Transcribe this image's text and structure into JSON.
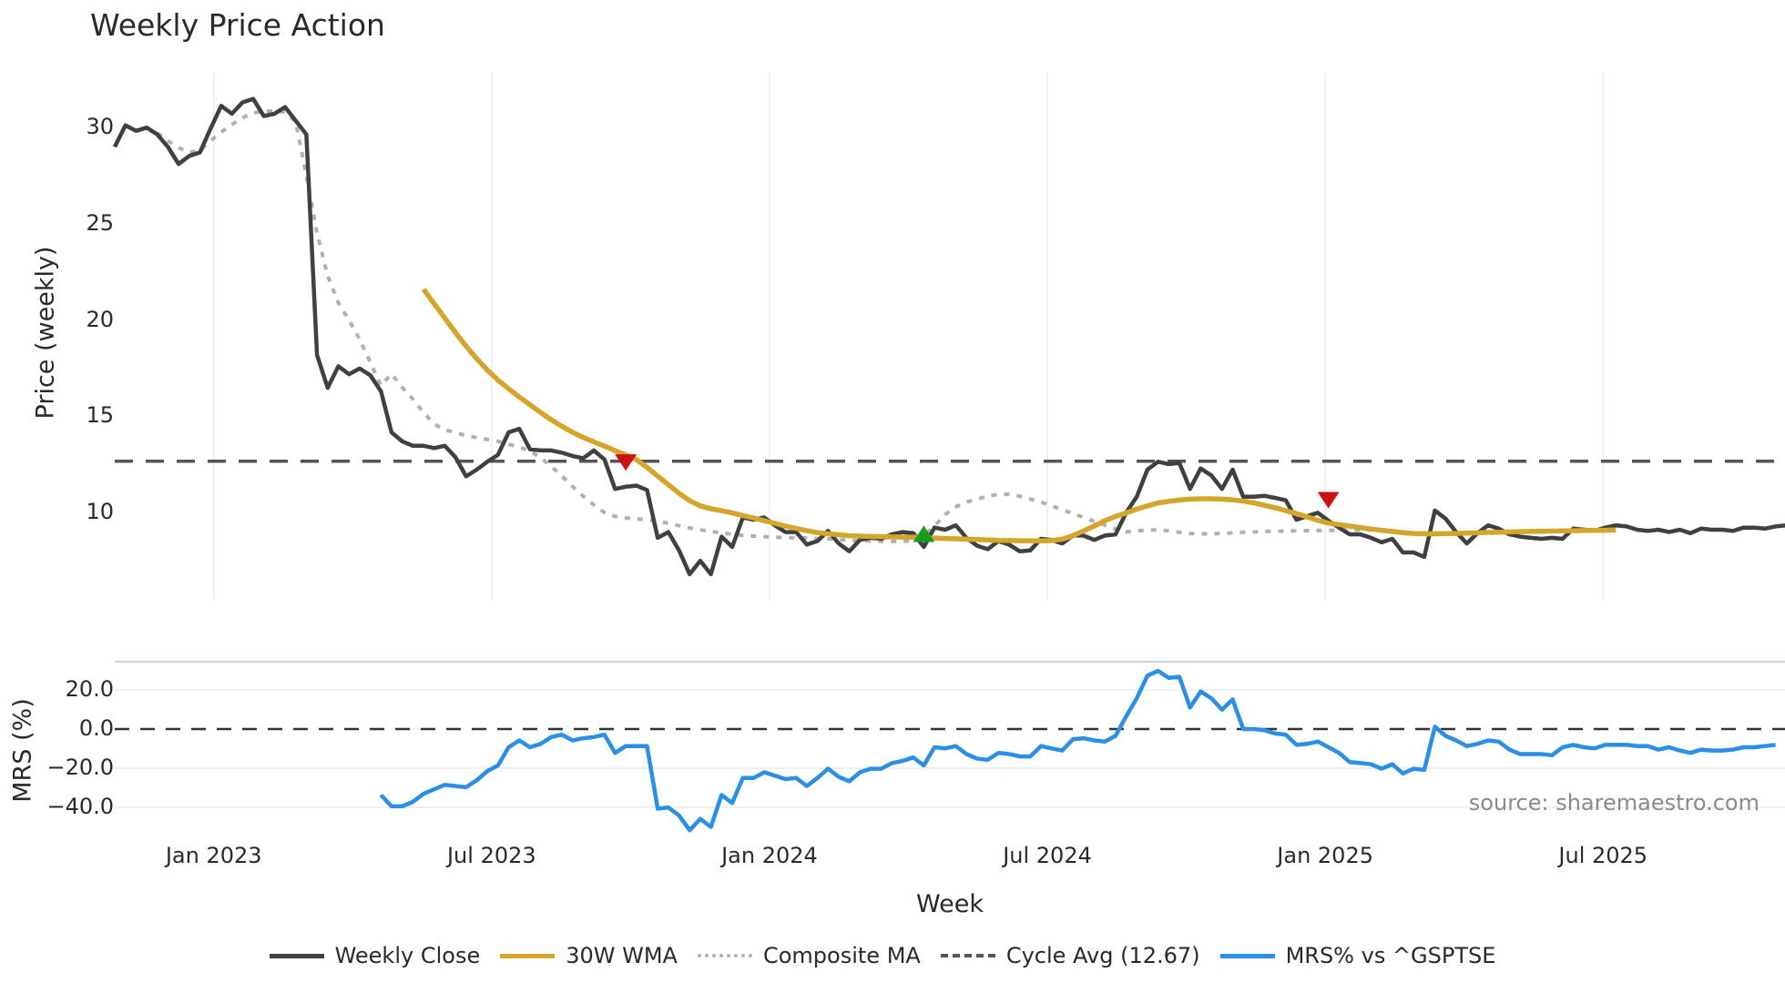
{
  "title": "Weekly Price Action",
  "source_note": "source: sharemaestro.com",
  "legend": {
    "weekly_close": "Weekly Close",
    "wma": "30W WMA",
    "composite": "Composite MA",
    "cycle": "Cycle Avg (12.67)",
    "mrs": "MRS% vs ^GSPTSE"
  },
  "axes": {
    "price_ylabel": "Price (weekly)",
    "mrs_ylabel": "MRS (%)",
    "xlabel": "Week"
  },
  "colors": {
    "close": "#404040",
    "wma": "#d4a52a",
    "composite": "#b0b0b0",
    "cycle": "#555555",
    "mrs": "#2b8fe6",
    "signal_down": "#cc1111",
    "signal_up": "#1a9a1a",
    "grid": "#e9ecef"
  },
  "chart_data": [
    {
      "type": "line",
      "title": "Weekly Price Action",
      "xlabel": "Week",
      "ylabel": "Price (weekly)",
      "x_ticks": [
        "Jan 2023",
        "Jul 2023",
        "Jan 2024",
        "Jul 2024",
        "Jan 2025",
        "Jul 2025"
      ],
      "y_ticks": [
        10,
        15,
        20,
        25,
        30
      ],
      "ylim": [
        4.7,
        33
      ],
      "start_week": "2022-10-31",
      "grid": "vertical",
      "legend_position": "bottom",
      "series": [
        {
          "name": "Weekly Close",
          "values": [
            28.99,
            30.11,
            29.82,
            29.99,
            29.63,
            28.99,
            28.1,
            28.52,
            28.7,
            29.94,
            31.12,
            30.71,
            31.3,
            31.48,
            30.59,
            30.71,
            31.06,
            30.35,
            29.64,
            18.19,
            16.48,
            17.6,
            17.19,
            17.48,
            17.13,
            16.3,
            14.17,
            13.7,
            13.47,
            13.47,
            13.35,
            13.47,
            12.88,
            11.88,
            12.23,
            12.64,
            13.0,
            14.17,
            14.35,
            13.29,
            13.23,
            13.23,
            13.11,
            12.94,
            12.82,
            13.23,
            12.76,
            11.23,
            11.34,
            11.4,
            11.17,
            8.69,
            8.99,
            8.04,
            6.8,
            7.5,
            6.8,
            8.75,
            8.22,
            9.75,
            9.63,
            9.75,
            9.34,
            8.99,
            8.99,
            8.34,
            8.52,
            9.05,
            8.4,
            7.99,
            8.58,
            8.69,
            8.64,
            8.87,
            8.99,
            8.93,
            8.22,
            9.22,
            9.11,
            9.34,
            8.69,
            8.28,
            8.1,
            8.52,
            8.34,
            7.99,
            8.04,
            8.64,
            8.58,
            8.4,
            8.81,
            8.81,
            8.58,
            8.81,
            8.87,
            9.99,
            10.82,
            12.23,
            12.64,
            12.52,
            12.58,
            11.23,
            12.29,
            11.93,
            11.23,
            12.23,
            10.82,
            10.82,
            10.87,
            10.76,
            10.64,
            9.63,
            9.81,
            9.99,
            9.58,
            9.22,
            8.87,
            8.87,
            8.69,
            8.46,
            8.64,
            7.93,
            7.93,
            7.7,
            10.11,
            9.69,
            8.99,
            8.4,
            8.93,
            9.34,
            9.17,
            8.87,
            8.75,
            8.69,
            8.64,
            8.69,
            8.64,
            9.17,
            9.11,
            9.05,
            9.22,
            9.34,
            9.28,
            9.11,
            9.05,
            9.11,
            8.99,
            9.11,
            8.93,
            9.17,
            9.11,
            9.11,
            9.05,
            9.22,
            9.22,
            9.17,
            9.28,
            9.34
          ]
        },
        {
          "name": "30W WMA",
          "start_index": 29,
          "values": [
            21.6,
            20.85,
            20.1,
            19.35,
            18.64,
            17.98,
            17.4,
            16.88,
            16.43,
            16.0,
            15.6,
            15.2,
            14.82,
            14.48,
            14.17,
            13.9,
            13.67,
            13.45,
            13.22,
            13.0,
            12.75,
            12.35,
            11.9,
            11.45,
            11.0,
            10.62,
            10.35,
            10.2,
            10.1,
            9.98,
            9.85,
            9.72,
            9.58,
            9.44,
            9.3,
            9.18,
            9.06,
            8.96,
            8.9,
            8.85,
            8.8,
            8.78,
            8.76,
            8.75,
            8.74,
            8.73,
            8.72,
            8.7,
            8.68,
            8.66,
            8.64,
            8.62,
            8.6,
            8.58,
            8.56,
            8.55,
            8.54,
            8.53,
            8.53,
            8.55,
            8.62,
            8.8,
            9.05,
            9.3,
            9.58,
            9.8,
            9.98,
            10.18,
            10.35,
            10.5,
            10.58,
            10.65,
            10.7,
            10.72,
            10.72,
            10.7,
            10.66,
            10.6,
            10.5,
            10.38,
            10.25,
            10.1,
            9.95,
            9.78,
            9.6,
            9.45,
            9.38,
            9.3,
            9.22,
            9.15,
            9.08,
            9.02,
            8.96,
            8.92,
            8.9,
            8.9,
            8.91,
            8.92,
            8.93,
            8.95,
            8.97,
            8.98,
            9.0,
            9.01,
            9.02,
            9.03,
            9.04,
            9.05,
            9.06,
            9.07,
            9.08,
            9.09,
            9.1
          ]
        },
        {
          "name": "Composite MA",
          "start_index": 4,
          "values": [
            29.7,
            29.3,
            28.95,
            28.7,
            28.8,
            29.3,
            29.75,
            30.15,
            30.5,
            30.75,
            30.85,
            30.85,
            30.8,
            30.3,
            27.5,
            24.5,
            22.3,
            20.9,
            20.0,
            19.0,
            17.8,
            16.6,
            17.2,
            16.5,
            15.9,
            15.2,
            14.6,
            14.3,
            14.15,
            14.0,
            13.9,
            13.8,
            13.7,
            13.55,
            13.4,
            13.2,
            12.85,
            12.4,
            11.9,
            11.35,
            10.85,
            10.4,
            10.0,
            9.8,
            9.72,
            9.68,
            9.62,
            9.55,
            9.45,
            9.32,
            9.2,
            9.1,
            9.02,
            8.95,
            8.88,
            8.82,
            8.78,
            8.75,
            8.72,
            8.7,
            8.69,
            8.68,
            8.66,
            8.64,
            8.6,
            8.56,
            8.54,
            8.52,
            8.5,
            8.5,
            8.5,
            8.55,
            8.8,
            9.3,
            9.9,
            10.3,
            10.55,
            10.7,
            10.85,
            10.95,
            10.95,
            10.85,
            10.7,
            10.55,
            10.35,
            10.15,
            9.95,
            9.75,
            9.55,
            9.35,
            9.15,
            9.0,
            9.05,
            9.1,
            9.1,
            9.05,
            8.98,
            8.92,
            8.9,
            8.9,
            8.92,
            8.95,
            8.98,
            9.0,
            9.02,
            9.03,
            9.04,
            9.05,
            9.06,
            9.07,
            9.08,
            9.09,
            9.1,
            9.1,
            9.1,
            9.11,
            9.12
          ]
        },
        {
          "name": "Cycle Avg (12.67)",
          "constant": 12.67,
          "style": "dashed"
        }
      ],
      "markers": [
        {
          "type": "sell",
          "shape": "triangle-down",
          "color": "#cc1111",
          "index": 48,
          "value": 12.6
        },
        {
          "type": "buy",
          "shape": "triangle-up",
          "color": "#1a9a1a",
          "index": 76,
          "value": 8.9
        },
        {
          "type": "sell",
          "shape": "triangle-down",
          "color": "#cc1111",
          "index": 114,
          "value": 10.65
        }
      ]
    },
    {
      "type": "line",
      "ylabel": "MRS (%)",
      "y_ticks": [
        -40.0,
        -20.0,
        0.0,
        20.0
      ],
      "ylim": [
        -54,
        34
      ],
      "reference_line": 0.0,
      "series": [
        {
          "name": "MRS% vs ^GSPTSE",
          "start_index": 25,
          "values": [
            -33.7,
            -39.5,
            -39.5,
            -37.2,
            -33.1,
            -30.8,
            -28.5,
            -29.1,
            -29.7,
            -26.2,
            -21.5,
            -18.6,
            -9.3,
            -5.8,
            -9.3,
            -7.6,
            -4.1,
            -2.9,
            -5.8,
            -4.7,
            -4.1,
            -2.9,
            -12.2,
            -8.7,
            -8.7,
            -8.7,
            -40.7,
            -40.1,
            -44.2,
            -51.7,
            -45.9,
            -50.0,
            -33.7,
            -37.8,
            -25.0,
            -25.0,
            -22.1,
            -23.8,
            -25.6,
            -25.0,
            -29.1,
            -25.0,
            -20.3,
            -24.4,
            -26.7,
            -22.1,
            -20.3,
            -20.3,
            -17.4,
            -16.3,
            -14.5,
            -18.6,
            -9.3,
            -9.9,
            -8.7,
            -12.8,
            -15.1,
            -15.7,
            -12.2,
            -12.8,
            -14.0,
            -14.0,
            -8.7,
            -9.9,
            -11.0,
            -5.2,
            -4.7,
            -5.8,
            -6.4,
            -3.5,
            6.4,
            15.7,
            27.3,
            29.7,
            26.2,
            26.7,
            11.0,
            19.2,
            15.7,
            9.9,
            15.1,
            0.0,
            0.0,
            -0.6,
            -2.3,
            -2.9,
            -8.1,
            -7.6,
            -6.4,
            -9.3,
            -12.2,
            -16.9,
            -17.4,
            -18.0,
            -20.3,
            -18.0,
            -22.7,
            -20.3,
            -20.9,
            1.2,
            -3.5,
            -5.8,
            -8.7,
            -7.6,
            -5.8,
            -6.4,
            -10.5,
            -12.8,
            -12.8,
            -12.8,
            -13.4,
            -9.3,
            -8.1,
            -9.3,
            -9.9,
            -8.1,
            -8.1,
            -8.1,
            -8.7,
            -8.7,
            -10.5,
            -9.3,
            -11.0,
            -12.2,
            -10.5,
            -11.0,
            -11.0,
            -10.5,
            -9.3,
            -9.3,
            -8.7,
            -8.1
          ]
        }
      ]
    }
  ]
}
